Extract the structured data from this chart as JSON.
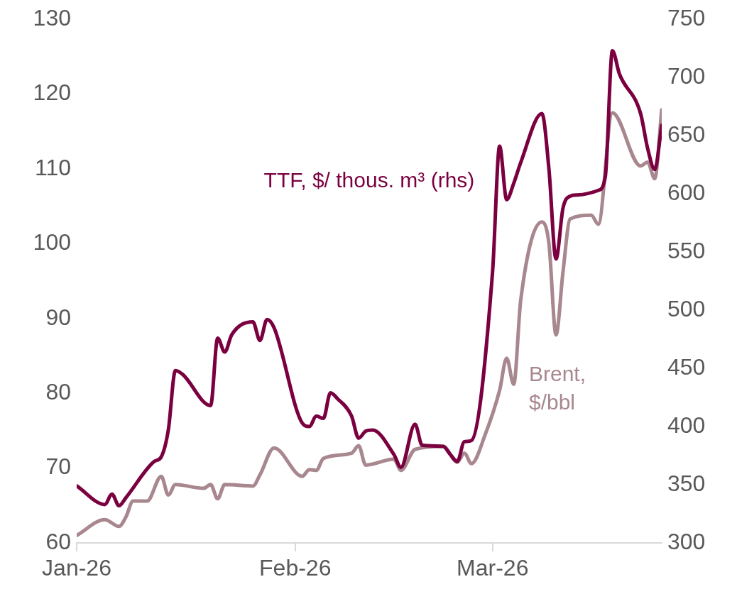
{
  "chart_data": {
    "type": "line",
    "xlim": [
      "2026-01-01",
      "2026-03-25"
    ],
    "xticks": [
      {
        "value": "2026-01-01",
        "label": "Jan-26"
      },
      {
        "value": "2026-02-01",
        "label": "Feb-26"
      },
      {
        "value": "2026-03-01",
        "label": "Mar-26"
      }
    ],
    "ylim": [
      60,
      130
    ],
    "yticks": [
      60,
      70,
      80,
      90,
      100,
      110,
      120,
      130
    ],
    "y2lim": [
      300,
      750
    ],
    "y2ticks": [
      300,
      350,
      400,
      450,
      500,
      550,
      600,
      650,
      700,
      750
    ],
    "grid": false,
    "legend": false,
    "marker": "none",
    "line_style": "solid",
    "series": [
      {
        "name": "TTF, $/ thous. m³ (rhs)",
        "color": "#7a0040",
        "axis": "y2",
        "x": [
          "2026-01-01",
          "2026-01-05",
          "2026-01-06",
          "2026-01-07",
          "2026-01-08",
          "2026-01-12",
          "2026-01-13",
          "2026-01-14",
          "2026-01-15",
          "2026-01-16",
          "2026-01-20",
          "2026-01-21",
          "2026-01-22",
          "2026-01-23",
          "2026-01-26",
          "2026-01-27",
          "2026-01-28",
          "2026-01-29",
          "2026-02-02",
          "2026-02-03",
          "2026-02-04",
          "2026-02-05",
          "2026-02-06",
          "2026-02-07",
          "2026-02-09",
          "2026-02-10",
          "2026-02-11",
          "2026-02-12",
          "2026-02-15",
          "2026-02-16",
          "2026-02-18",
          "2026-02-19",
          "2026-02-22",
          "2026-02-23",
          "2026-02-24",
          "2026-02-25",
          "2026-02-26",
          "2026-03-01",
          "2026-03-02",
          "2026-03-03",
          "2026-03-04",
          "2026-03-05",
          "2026-03-08",
          "2026-03-09",
          "2026-03-10",
          "2026-03-11",
          "2026-03-12",
          "2026-03-13",
          "2026-03-16",
          "2026-03-17",
          "2026-03-18",
          "2026-03-19",
          "2026-03-22",
          "2026-03-23",
          "2026-03-24",
          "2026-03-25"
        ],
        "values": [
          349,
          333,
          342,
          332,
          339,
          370,
          374,
          397,
          448,
          445,
          418,
          476,
          464,
          479,
          490,
          474,
          492,
          485,
          403,
          400,
          409,
          407,
          429,
          424,
          409,
          390,
          396,
          397,
          376,
          365,
          402,
          384,
          383,
          376,
          370,
          387,
          388,
          533,
          641,
          595,
          609,
          627,
          669,
          621,
          544,
          588,
          598,
          599,
          603,
          615,
          723,
          703,
          669,
          639,
          621,
          659
        ]
      },
      {
        "name": "Brent, $/bbl",
        "color": "#a8878f",
        "x": [
          "2026-01-01",
          "2026-01-05",
          "2026-01-07",
          "2026-01-08",
          "2026-01-09",
          "2026-01-11",
          "2026-01-13",
          "2026-01-14",
          "2026-01-15",
          "2026-01-19",
          "2026-01-20",
          "2026-01-21",
          "2026-01-22",
          "2026-01-26",
          "2026-01-27",
          "2026-01-29",
          "2026-02-02",
          "2026-02-03",
          "2026-02-04",
          "2026-02-05",
          "2026-02-09",
          "2026-02-10",
          "2026-02-11",
          "2026-02-15",
          "2026-02-16",
          "2026-02-18",
          "2026-02-22",
          "2026-02-24",
          "2026-02-25",
          "2026-02-26",
          "2026-02-28",
          "2026-03-02",
          "2026-03-03",
          "2026-03-04",
          "2026-03-05",
          "2026-03-08",
          "2026-03-09",
          "2026-03-10",
          "2026-03-11",
          "2026-03-12",
          "2026-03-15",
          "2026-03-16",
          "2026-03-18",
          "2026-03-22",
          "2026-03-23",
          "2026-03-24",
          "2026-03-25"
        ],
        "values": [
          61.0,
          63.1,
          62.2,
          63.5,
          65.6,
          65.6,
          68.9,
          66.4,
          67.8,
          67.3,
          67.8,
          65.9,
          67.8,
          67.6,
          69.1,
          72.7,
          68.9,
          69.8,
          69.7,
          71.3,
          72.0,
          73.0,
          70.4,
          71.2,
          69.7,
          72.5,
          72.9,
          70.8,
          72.0,
          70.6,
          74.6,
          80.4,
          84.7,
          81.2,
          92.5,
          102.9,
          100.0,
          87.8,
          96.3,
          103.3,
          103.8,
          102.6,
          117.5,
          110.4,
          110.9,
          108.7,
          117.9
        ]
      }
    ]
  }
}
